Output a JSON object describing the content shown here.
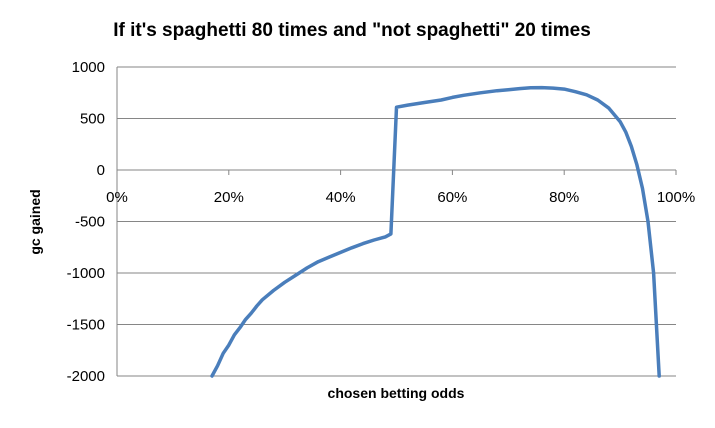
{
  "chart_data": {
    "type": "line",
    "title": "If it's spaghetti 80 times and \"not spaghetti\" 20 times",
    "xlabel": "chosen betting odds",
    "ylabel": "gc gained",
    "xlim": [
      0,
      100
    ],
    "ylim": [
      -2000,
      1000
    ],
    "x_ticks": [
      0,
      20,
      40,
      60,
      80,
      100
    ],
    "x_tick_labels": [
      "0%",
      "20%",
      "40%",
      "60%",
      "80%",
      "100%"
    ],
    "y_ticks": [
      1000,
      500,
      0,
      -500,
      -1000,
      -1500,
      -2000
    ],
    "y_tick_labels": [
      "1000",
      "500",
      "0",
      "-500",
      "-1000",
      "-1500",
      "-2000"
    ],
    "grid": "horizontal",
    "series_color": "#4a7ebb",
    "series": [
      {
        "x": [
          17,
          18,
          19,
          20,
          21,
          22,
          23,
          24,
          25,
          26,
          28,
          30,
          32,
          34,
          36,
          38,
          40,
          42,
          44,
          46,
          48,
          49,
          50,
          52,
          55,
          58,
          60,
          62,
          65,
          68,
          70,
          72,
          74,
          76,
          78,
          80,
          82,
          84,
          86,
          88,
          90,
          91,
          92,
          93,
          94,
          95,
          96,
          97
        ],
        "y": [
          -2000,
          -1900,
          -1780,
          -1700,
          -1600,
          -1530,
          -1450,
          -1390,
          -1320,
          -1260,
          -1170,
          -1090,
          -1020,
          -950,
          -890,
          -845,
          -800,
          -755,
          -715,
          -680,
          -650,
          -620,
          610,
          630,
          655,
          680,
          705,
          725,
          750,
          770,
          780,
          790,
          798,
          800,
          795,
          785,
          760,
          730,
          680,
          600,
          470,
          370,
          230,
          50,
          -180,
          -500,
          -1000,
          -2000
        ]
      }
    ]
  }
}
